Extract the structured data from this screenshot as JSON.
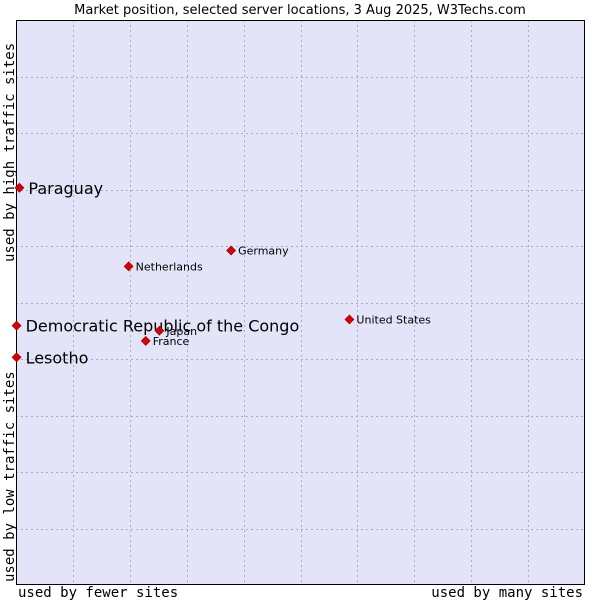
{
  "chart_data": {
    "type": "scatter",
    "title": "Market position, selected server locations, 3 Aug 2025, W3Techs.com",
    "xlabel_left": "used by fewer sites",
    "xlabel_right": "used by many sites",
    "ylabel_bottom": "used by low traffic sites",
    "ylabel_top": "used by high traffic sites",
    "xlim": [
      0,
      100
    ],
    "ylim": [
      0,
      100
    ],
    "grid": true,
    "colors": {
      "plot_background": "#e4e4f8",
      "grid": "#aaaacc",
      "border": "#000000",
      "marker": "#dd0000",
      "marker_outline": "#880000"
    },
    "points": [
      {
        "name": "Paraguay",
        "x": 0.6,
        "y": 70.3,
        "highlight": true
      },
      {
        "name": "Germany",
        "x": 37.8,
        "y": 59.2,
        "highlight": false
      },
      {
        "name": "Netherlands",
        "x": 19.8,
        "y": 56.4,
        "highlight": false
      },
      {
        "name": "Democratic Republic of the Congo",
        "x": 0.1,
        "y": 45.9,
        "highlight": true
      },
      {
        "name": "United States",
        "x": 58.6,
        "y": 47.0,
        "highlight": false
      },
      {
        "name": "Japan",
        "x": 25.2,
        "y": 45.0,
        "highlight": false
      },
      {
        "name": "France",
        "x": 22.8,
        "y": 43.2,
        "highlight": false
      },
      {
        "name": "Lesotho",
        "x": 0.1,
        "y": 40.3,
        "highlight": true
      }
    ]
  }
}
